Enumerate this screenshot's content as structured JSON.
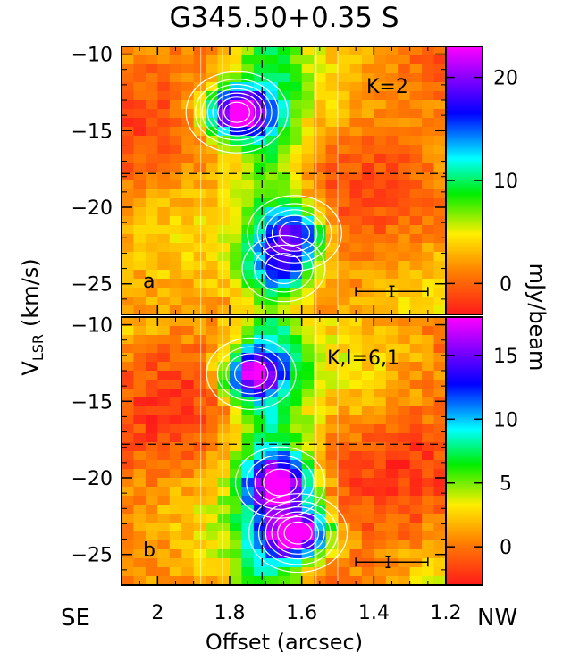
{
  "chart_data": [
    {
      "type": "heatmap",
      "title": "G345.50+0.35 S",
      "panel_label": "a",
      "transition_label": "K=2",
      "xlabel": "Offset (arcsec)",
      "x_tick_labels": [
        "2",
        "1.8",
        "1.6",
        "1.4",
        "1.2"
      ],
      "xlim": [
        2.1,
        1.2
      ],
      "ylabel_main": "V",
      "ylabel_sub": "LSR",
      "ylabel_units": "(km/s)",
      "y_tick_labels": [
        "−10",
        "−15",
        "−20",
        "−25"
      ],
      "ylim": [
        -27,
        -9.5
      ],
      "x_ticks": [
        2.0,
        1.8,
        1.6,
        1.4,
        1.2
      ],
      "y_ticks": [
        -10,
        -15,
        -20,
        -25
      ],
      "colorbar_label": "mJy/beam",
      "colorbar_range": [
        -3,
        23
      ],
      "colorbar_ticks": [
        0,
        10,
        20
      ],
      "colorbar_tick_labels": [
        "0",
        "10",
        "20"
      ],
      "reference_lines": {
        "vertical_offset": 1.71,
        "horizontal_velocity": -17.8
      },
      "peaks": [
        {
          "x": 1.78,
          "y": -13.8,
          "value": 22
        },
        {
          "x": 1.62,
          "y": -21.7,
          "value": 14
        },
        {
          "x": 1.65,
          "y": -24.0,
          "value": 10
        }
      ],
      "error_bar": {
        "x": 1.35,
        "x_min": 1.45,
        "x_max": 1.25,
        "y": -25.5
      }
    },
    {
      "type": "heatmap",
      "panel_label": "b",
      "transition_label": "K,l=6,1",
      "xlabel": "Offset (arcsec)",
      "x_tick_labels": [
        "2",
        "1.8",
        "1.6",
        "1.4",
        "1.2"
      ],
      "xlim": [
        2.1,
        1.2
      ],
      "y_tick_labels": [
        "−10",
        "−15",
        "−20",
        "−25"
      ],
      "ylim": [
        -27,
        -9.5
      ],
      "x_ticks": [
        2.0,
        1.8,
        1.6,
        1.4,
        1.2
      ],
      "y_ticks": [
        -10,
        -15,
        -20,
        -25
      ],
      "colorbar_label": "mJy/beam",
      "colorbar_range": [
        -3,
        18
      ],
      "colorbar_ticks": [
        0,
        5,
        10,
        15
      ],
      "colorbar_tick_labels": [
        "0",
        "5",
        "10",
        "15"
      ],
      "reference_lines": {
        "vertical_offset": 1.71,
        "horizontal_velocity": -17.8
      },
      "peaks": [
        {
          "x": 1.74,
          "y": -13.2,
          "value": 12
        },
        {
          "x": 1.66,
          "y": -20.3,
          "value": 13
        },
        {
          "x": 1.61,
          "y": -23.6,
          "value": 17
        }
      ],
      "error_bar": {
        "x": 1.36,
        "x_min": 1.45,
        "x_max": 1.25,
        "y": -25.5
      }
    }
  ],
  "side_labels": {
    "left": "SE",
    "right": "NW"
  },
  "colors": {
    "colormap": [
      "#ff1a1a",
      "#ff8000",
      "#ffee00",
      "#00ee00",
      "#00ffff",
      "#0000ff",
      "#ff00ff"
    ],
    "contour": "#ffffff",
    "reference_line": "#000000"
  }
}
